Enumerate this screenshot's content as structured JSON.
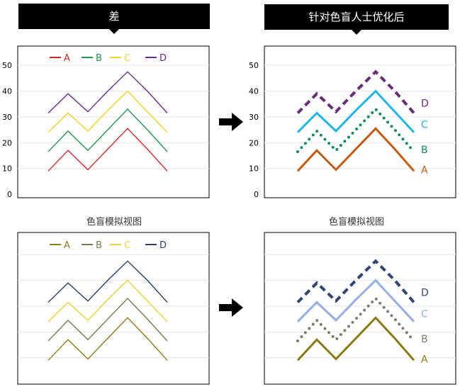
{
  "header_left": "差",
  "header_right": "针对色盲人士优化后",
  "caption_left": "色盲模拟视图",
  "caption_right": "色盲模拟视图",
  "chart_data": [
    {
      "type": "line",
      "x": [
        1,
        2,
        3,
        4,
        5,
        6,
        7
      ],
      "yticks": [
        "0",
        "10",
        "20",
        "30",
        "40",
        "50"
      ],
      "ylim": [
        0,
        55
      ],
      "legend": "top",
      "series": [
        {
          "name": "A",
          "color": "#d62728",
          "values": [
            9,
            17,
            9.5,
            17.5,
            25.5,
            17.5,
            9
          ]
        },
        {
          "name": "B",
          "color": "#1f9a4e",
          "values": [
            16.5,
            24.5,
            17,
            25,
            33,
            25,
            16.5
          ]
        },
        {
          "name": "C",
          "color": "#f2d120",
          "values": [
            24,
            31.5,
            24.5,
            32.5,
            40,
            32,
            24
          ]
        },
        {
          "name": "D",
          "color": "#6a2c91",
          "values": [
            31.5,
            39,
            32,
            40,
            47.5,
            40,
            31.5
          ]
        }
      ]
    },
    {
      "type": "line",
      "x": [
        1,
        2,
        3,
        4,
        5,
        6,
        7
      ],
      "yticks": [
        "0",
        "10",
        "20",
        "30",
        "40",
        "50"
      ],
      "ylim": [
        0,
        55
      ],
      "labels_at_end": true,
      "series": [
        {
          "name": "A",
          "color": "#c55a11",
          "style": "solid",
          "values": [
            9,
            17,
            9.5,
            17.5,
            25.5,
            17.5,
            9
          ]
        },
        {
          "name": "B",
          "color": "#0f8a68",
          "style": "dotted",
          "values": [
            16.5,
            24.5,
            17,
            25,
            33,
            25,
            16.5
          ]
        },
        {
          "name": "C",
          "color": "#1fb5e8",
          "style": "solid",
          "values": [
            24,
            31.5,
            24.5,
            32.5,
            40,
            32,
            24
          ]
        },
        {
          "name": "D",
          "color": "#6a2c7a",
          "style": "dashed",
          "values": [
            31.5,
            39,
            32,
            40,
            47.5,
            40,
            31.5
          ]
        }
      ]
    },
    {
      "type": "line",
      "x": [
        1,
        2,
        3,
        4,
        5,
        6,
        7
      ],
      "ylim": [
        0,
        55
      ],
      "legend": "top",
      "series": [
        {
          "name": "A",
          "color": "#8a7d14",
          "values": [
            9,
            17,
            9.5,
            17.5,
            25.5,
            17.5,
            9
          ]
        },
        {
          "name": "B",
          "color": "#7d7a4e",
          "values": [
            16.5,
            24.5,
            17,
            25,
            33,
            25,
            16.5
          ]
        },
        {
          "name": "C",
          "color": "#e6d233",
          "values": [
            24,
            31.5,
            24.5,
            32.5,
            40,
            32,
            24
          ]
        },
        {
          "name": "D",
          "color": "#2a3f6b",
          "values": [
            31.5,
            39,
            32,
            40,
            47.5,
            40,
            31.5
          ]
        }
      ]
    },
    {
      "type": "line",
      "x": [
        1,
        2,
        3,
        4,
        5,
        6,
        7
      ],
      "ylim": [
        0,
        55
      ],
      "labels_at_end": true,
      "series": [
        {
          "name": "A",
          "color": "#8c7a10",
          "style": "solid",
          "values": [
            9,
            17,
            9.5,
            17.5,
            25.5,
            17.5,
            9
          ]
        },
        {
          "name": "B",
          "color": "#7d7b6c",
          "style": "dotted",
          "values": [
            16.5,
            24.5,
            17,
            25,
            33,
            25,
            16.5
          ]
        },
        {
          "name": "C",
          "color": "#94aee6",
          "style": "solid",
          "values": [
            24,
            31.5,
            24.5,
            32.5,
            40,
            32,
            24
          ]
        },
        {
          "name": "D",
          "color": "#2f4470",
          "style": "dashed",
          "values": [
            31.5,
            39,
            32,
            40,
            47.5,
            40,
            31.5
          ]
        }
      ]
    }
  ]
}
